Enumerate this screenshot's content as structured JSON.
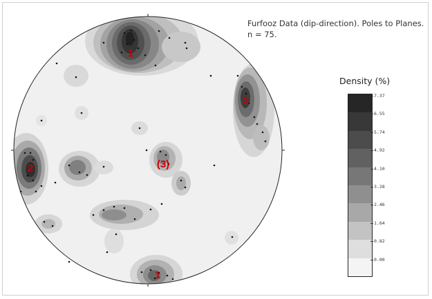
{
  "annotation": {
    "line1": "Furfooz Data (dip-direction). Poles to Planes.",
    "line2": "n = 75."
  },
  "legend": {
    "title": "Density (%)",
    "ticks": [
      "7.37",
      "6.55",
      "5.74",
      "4.92",
      "4.10",
      "3.28",
      "2.46",
      "1.64",
      "0.82",
      "0.00"
    ],
    "colors": [
      "#262626",
      "#383838",
      "#4c4c4c",
      "#616161",
      "#777777",
      "#8f8f8f",
      "#a8a8a8",
      "#c3c3c3",
      "#dedede",
      "#f4f4f4"
    ]
  },
  "cluster_labels": [
    {
      "text": "1",
      "color": "#cc0000"
    },
    {
      "text": "2",
      "color": "#cc0000"
    },
    {
      "text": "2",
      "color": "#cc0000"
    },
    {
      "text": "(3)",
      "color": "#cc0000"
    },
    {
      "text": "1",
      "color": "#cc0000"
    }
  ],
  "net": {
    "outline_color": "#222222",
    "background": "#f0f0f0"
  }
}
